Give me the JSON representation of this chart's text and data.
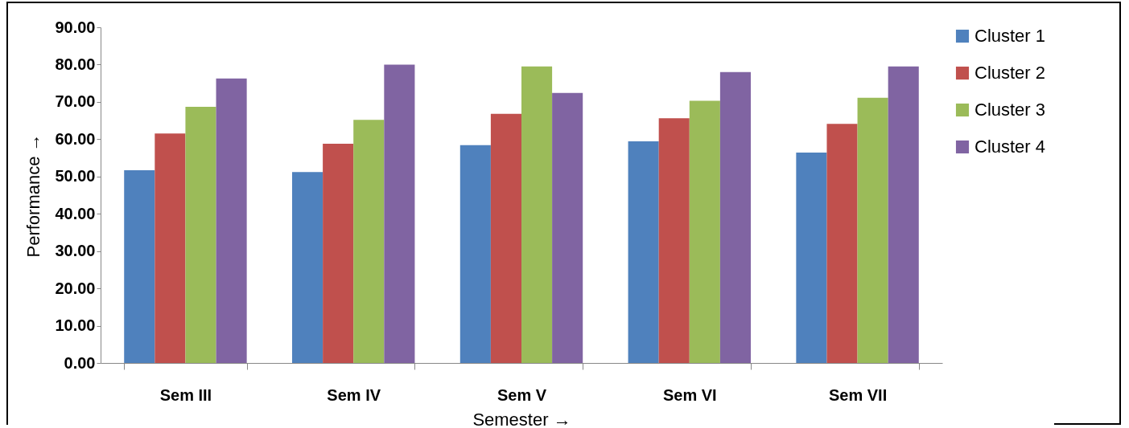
{
  "chart_data": {
    "type": "bar",
    "xlabel": "Semester  →",
    "ylabel": "Performance  →",
    "categories": [
      "Sem III",
      "Sem IV",
      "Sem V",
      "Sem VI",
      "Sem VII"
    ],
    "series": [
      {
        "name": "Cluster 1",
        "color": "#4f81bd",
        "values": [
          51.7,
          51.2,
          58.4,
          59.4,
          56.4
        ]
      },
      {
        "name": "Cluster 2",
        "color": "#c0504d",
        "values": [
          61.5,
          58.8,
          66.8,
          65.6,
          64.1
        ]
      },
      {
        "name": "Cluster 3",
        "color": "#9bbb59",
        "values": [
          68.7,
          65.2,
          79.5,
          70.3,
          71.1
        ]
      },
      {
        "name": "Cluster 4",
        "color": "#8064a2",
        "values": [
          76.3,
          80.0,
          72.4,
          78.0,
          79.5
        ]
      }
    ],
    "ylim": [
      0,
      90
    ],
    "yticks": [
      {
        "value": 0,
        "label": "0.00"
      },
      {
        "value": 10,
        "label": "10.00"
      },
      {
        "value": 20,
        "label": "20.00"
      },
      {
        "value": 30,
        "label": "30.00"
      },
      {
        "value": 40,
        "label": "40.00"
      },
      {
        "value": 50,
        "label": "50.00"
      },
      {
        "value": 60,
        "label": "60.00"
      },
      {
        "value": 70,
        "label": "70.00"
      },
      {
        "value": 80,
        "label": "80.00"
      },
      {
        "value": 90,
        "label": "90.00"
      }
    ],
    "grid": false,
    "legend": "right"
  }
}
